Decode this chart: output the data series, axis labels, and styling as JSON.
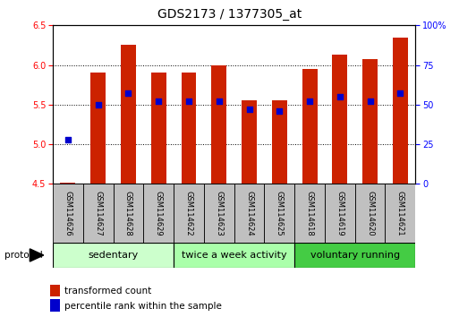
{
  "title": "GDS2173 / 1377305_at",
  "samples": [
    "GSM114626",
    "GSM114627",
    "GSM114628",
    "GSM114629",
    "GSM114622",
    "GSM114623",
    "GSM114624",
    "GSM114625",
    "GSM114618",
    "GSM114619",
    "GSM114620",
    "GSM114621"
  ],
  "transformed_count": [
    4.52,
    5.9,
    6.25,
    5.9,
    5.9,
    6.0,
    5.55,
    5.55,
    5.95,
    6.13,
    6.07,
    6.35
  ],
  "percentile_rank": [
    28,
    50,
    57,
    52,
    52,
    52,
    47,
    46,
    52,
    55,
    52,
    57
  ],
  "bar_color": "#cc2200",
  "dot_color": "#0000cc",
  "ylim_left": [
    4.5,
    6.5
  ],
  "ylim_right": [
    0,
    100
  ],
  "yticks_left": [
    4.5,
    5.0,
    5.5,
    6.0,
    6.5
  ],
  "yticks_right": [
    0,
    25,
    50,
    75,
    100
  ],
  "ytick_labels_right": [
    "0",
    "25",
    "50",
    "75",
    "100%"
  ],
  "group_colors": [
    "#ccffcc",
    "#aaffaa",
    "#44cc44"
  ],
  "groups": [
    {
      "label": "sedentary",
      "start": 0,
      "end": 3
    },
    {
      "label": "twice a week activity",
      "start": 4,
      "end": 7
    },
    {
      "label": "voluntary running",
      "start": 8,
      "end": 11
    }
  ],
  "protocol_label": "protocol",
  "bar_width": 0.5,
  "legend_tc_label": "transformed count",
  "legend_pr_label": "percentile rank within the sample",
  "group_box_color": "#c0c0c0",
  "group_label_fontsize": 8,
  "tick_label_fontsize": 7,
  "title_fontsize": 10
}
